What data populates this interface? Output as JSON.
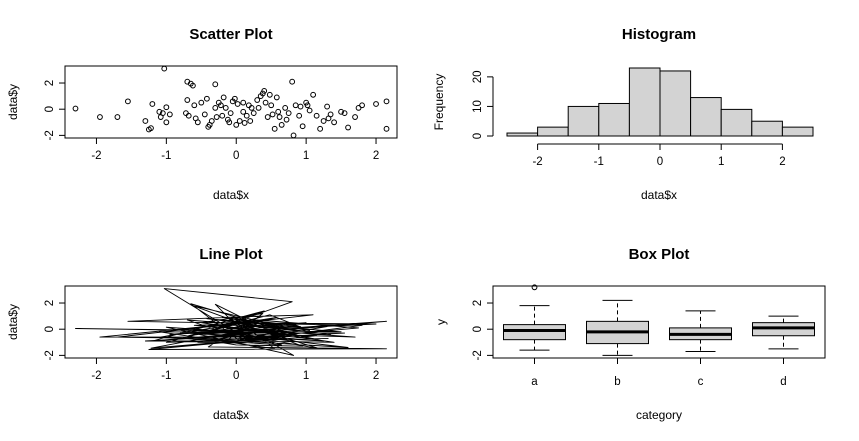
{
  "chart_data": [
    {
      "type": "scatter",
      "title": "Scatter Plot",
      "xlabel": "data$x",
      "ylabel": "data$y",
      "xlim": [
        -2.45,
        2.3
      ],
      "ylim": [
        -2.2,
        3.3
      ],
      "xticks": [
        -2,
        -1,
        0,
        1,
        2
      ],
      "yticks": [
        -2,
        0,
        2
      ],
      "ytick_labels": [
        "-2",
        "0",
        "2"
      ],
      "points": [
        [
          -2.3,
          0.05
        ],
        [
          -1.95,
          -0.6
        ],
        [
          -1.7,
          -0.6
        ],
        [
          -1.55,
          0.6
        ],
        [
          -1.3,
          -0.9
        ],
        [
          -1.25,
          -1.55
        ],
        [
          -1.22,
          -1.45
        ],
        [
          -1.2,
          0.4
        ],
        [
          -1.1,
          -0.2
        ],
        [
          -1.08,
          -0.6
        ],
        [
          -1.05,
          -0.3
        ],
        [
          -1.03,
          3.1
        ],
        [
          -1.0,
          0.15
        ],
        [
          -1.0,
          -1.0
        ],
        [
          -0.95,
          -0.4
        ],
        [
          -0.7,
          2.1
        ],
        [
          -0.65,
          1.95
        ],
        [
          -0.62,
          1.8
        ],
        [
          -0.7,
          0.7
        ],
        [
          -0.72,
          -0.3
        ],
        [
          -0.68,
          -0.5
        ],
        [
          -0.6,
          0.3
        ],
        [
          -0.58,
          -0.7
        ],
        [
          -0.55,
          -1.0
        ],
        [
          -0.5,
          0.5
        ],
        [
          -0.45,
          -0.4
        ],
        [
          -0.42,
          0.8
        ],
        [
          -0.4,
          -1.35
        ],
        [
          -0.38,
          -1.2
        ],
        [
          -0.35,
          -0.9
        ],
        [
          -0.3,
          1.9
        ],
        [
          -0.3,
          0.1
        ],
        [
          -0.28,
          -0.6
        ],
        [
          -0.25,
          0.5
        ],
        [
          -0.22,
          0.3
        ],
        [
          -0.2,
          -0.5
        ],
        [
          -0.18,
          0.9
        ],
        [
          -0.15,
          0.1
        ],
        [
          -0.12,
          -0.8
        ],
        [
          -0.1,
          -1.0
        ],
        [
          -0.08,
          -0.3
        ],
        [
          -0.05,
          0.6
        ],
        [
          -0.02,
          0.8
        ],
        [
          0.0,
          -1.2
        ],
        [
          0.02,
          0.4
        ],
        [
          0.05,
          -0.9
        ],
        [
          0.1,
          -0.2
        ],
        [
          0.1,
          0.5
        ],
        [
          0.12,
          -1.05
        ],
        [
          0.15,
          -0.5
        ],
        [
          0.18,
          0.3
        ],
        [
          0.2,
          -0.9
        ],
        [
          0.22,
          0.1
        ],
        [
          0.25,
          -0.3
        ],
        [
          0.3,
          0.7
        ],
        [
          0.32,
          0.1
        ],
        [
          0.35,
          1.0
        ],
        [
          0.38,
          1.2
        ],
        [
          0.4,
          1.4
        ],
        [
          0.42,
          0.5
        ],
        [
          0.45,
          -0.6
        ],
        [
          0.48,
          1.1
        ],
        [
          0.5,
          0.3
        ],
        [
          0.52,
          -0.4
        ],
        [
          0.55,
          -1.5
        ],
        [
          0.58,
          0.9
        ],
        [
          0.6,
          -0.2
        ],
        [
          0.62,
          -0.6
        ],
        [
          0.65,
          -1.2
        ],
        [
          0.7,
          0.1
        ],
        [
          0.72,
          -0.8
        ],
        [
          0.75,
          -0.3
        ],
        [
          0.8,
          2.1
        ],
        [
          0.82,
          -2.0
        ],
        [
          0.85,
          0.3
        ],
        [
          0.9,
          -0.5
        ],
        [
          0.92,
          0.2
        ],
        [
          0.95,
          -1.3
        ],
        [
          1.0,
          0.5
        ],
        [
          1.02,
          0.3
        ],
        [
          1.05,
          -0.1
        ],
        [
          1.1,
          1.1
        ],
        [
          1.15,
          -0.5
        ],
        [
          1.2,
          -1.5
        ],
        [
          1.25,
          -0.9
        ],
        [
          1.3,
          0.2
        ],
        [
          1.32,
          -0.7
        ],
        [
          1.35,
          -0.4
        ],
        [
          1.4,
          -1.0
        ],
        [
          1.5,
          -0.2
        ],
        [
          1.55,
          -0.3
        ],
        [
          1.6,
          -1.4
        ],
        [
          1.7,
          -0.6
        ],
        [
          1.75,
          0.1
        ],
        [
          1.8,
          0.3
        ],
        [
          2.0,
          0.4
        ],
        [
          2.15,
          0.6
        ],
        [
          2.15,
          -1.5
        ]
      ]
    },
    {
      "type": "bar",
      "title": "Histogram",
      "xlabel": "data$x",
      "ylabel": "Frequency",
      "xlim": [
        -2.5,
        2.5
      ],
      "ylim": [
        0,
        23
      ],
      "xticks": [
        -2,
        -1,
        0,
        1,
        2
      ],
      "yticks": [
        0,
        10,
        20
      ],
      "bin_edges": [
        -2.5,
        -2.0,
        -1.5,
        -1.0,
        -0.5,
        0.0,
        0.5,
        1.0,
        1.5,
        2.0,
        2.5
      ],
      "values": [
        1,
        3,
        10,
        11,
        23,
        22,
        13,
        9,
        5,
        3
      ]
    },
    {
      "type": "line",
      "title": "Line Plot",
      "xlabel": "data$x",
      "ylabel": "data$y",
      "xlim": [
        -2.45,
        2.3
      ],
      "ylim": [
        -2.2,
        3.3
      ],
      "xticks": [
        -2,
        -1,
        0,
        1,
        2
      ],
      "yticks": [
        -2,
        0,
        2
      ],
      "ytick_labels": [
        "-2",
        "0",
        "2"
      ],
      "sequence": [
        [
          -0.3,
          0.1
        ],
        [
          0.4,
          1.4
        ],
        [
          -1.2,
          -0.9
        ],
        [
          2.15,
          0.6
        ],
        [
          -0.5,
          -0.4
        ],
        [
          0.8,
          2.1
        ],
        [
          -1.03,
          3.1
        ],
        [
          0.2,
          -0.9
        ],
        [
          -0.7,
          0.7
        ],
        [
          1.5,
          -0.2
        ],
        [
          -2.3,
          0.05
        ],
        [
          0.6,
          -0.2
        ],
        [
          -0.1,
          -1.0
        ],
        [
          1.8,
          0.3
        ],
        [
          -1.55,
          0.6
        ],
        [
          0.35,
          1.0
        ],
        [
          -0.4,
          -1.35
        ],
        [
          2.15,
          -1.5
        ],
        [
          -1.25,
          -1.55
        ],
        [
          0.9,
          -0.5
        ],
        [
          -0.65,
          1.95
        ],
        [
          0.05,
          -0.9
        ],
        [
          1.3,
          0.2
        ],
        [
          -0.95,
          -0.4
        ],
        [
          0.5,
          0.3
        ],
        [
          -0.2,
          0.9
        ],
        [
          1.1,
          1.1
        ],
        [
          -1.7,
          -0.6
        ],
        [
          0.72,
          -0.8
        ],
        [
          -0.3,
          1.9
        ],
        [
          0.15,
          -0.5
        ],
        [
          1.6,
          -1.4
        ],
        [
          -0.58,
          -0.7
        ],
        [
          0.25,
          -0.3
        ],
        [
          -1.0,
          0.15
        ],
        [
          0.82,
          -2.0
        ],
        [
          -0.05,
          0.6
        ],
        [
          1.25,
          -0.9
        ],
        [
          -0.72,
          -0.3
        ],
        [
          0.45,
          -0.6
        ],
        [
          -1.95,
          -0.6
        ],
        [
          0.1,
          0.5
        ],
        [
          0.58,
          0.9
        ],
        [
          -0.45,
          -0.4
        ],
        [
          1.0,
          0.5
        ],
        [
          -0.15,
          0.1
        ],
        [
          0.65,
          -1.2
        ],
        [
          -1.08,
          -0.6
        ],
        [
          0.3,
          0.7
        ],
        [
          1.75,
          0.1
        ],
        [
          -0.35,
          -0.9
        ],
        [
          0.0,
          -1.2
        ],
        [
          0.95,
          -1.3
        ],
        [
          -0.62,
          1.8
        ],
        [
          0.42,
          0.5
        ],
        [
          -0.25,
          0.5
        ],
        [
          2.0,
          0.4
        ],
        [
          -0.8,
          -0.3
        ],
        [
          0.75,
          -0.3
        ],
        [
          -1.3,
          -0.9
        ],
        [
          0.2,
          -0.9
        ],
        [
          1.4,
          -1.0
        ],
        [
          -0.5,
          0.5
        ],
        [
          0.38,
          1.2
        ],
        [
          -0.12,
          -0.8
        ],
        [
          1.55,
          -0.3
        ],
        [
          -1.1,
          -0.2
        ],
        [
          0.55,
          -1.5
        ],
        [
          -0.02,
          0.8
        ],
        [
          0.85,
          0.3
        ],
        [
          -0.28,
          -0.6
        ],
        [
          1.15,
          -0.5
        ],
        [
          0.12,
          -1.05
        ],
        [
          -0.55,
          -1.0
        ],
        [
          0.7,
          0.1
        ],
        [
          -0.18,
          0.9
        ],
        [
          1.05,
          -0.1
        ],
        [
          0.48,
          1.1
        ],
        [
          -0.68,
          -0.5
        ],
        [
          0.22,
          0.1
        ],
        [
          1.2,
          -1.5
        ],
        [
          -0.08,
          -0.3
        ],
        [
          0.62,
          -0.6
        ],
        [
          -1.22,
          -1.45
        ],
        [
          0.32,
          0.1
        ],
        [
          0.92,
          0.2
        ],
        [
          -0.42,
          0.8
        ],
        [
          1.35,
          -0.4
        ],
        [
          0.18,
          0.3
        ],
        [
          -0.22,
          0.3
        ],
        [
          0.52,
          -0.4
        ],
        [
          1.7,
          -0.6
        ],
        [
          -0.6,
          0.3
        ],
        [
          0.02,
          0.4
        ],
        [
          -1.0,
          -1.0
        ],
        [
          1.32,
          -0.7
        ]
      ]
    },
    {
      "type": "box",
      "title": "Box Plot",
      "xlabel": "category",
      "ylabel": "y",
      "ylim": [
        -2.2,
        3.3
      ],
      "yticks": [
        -2,
        0,
        2
      ],
      "ytick_labels": [
        "-2",
        "0",
        "2"
      ],
      "categories": [
        "a",
        "b",
        "c",
        "d"
      ],
      "boxes": [
        {
          "min": -1.6,
          "q1": -0.8,
          "median": -0.1,
          "q3": 0.35,
          "max": 1.8,
          "outliers": [
            3.2
          ]
        },
        {
          "min": -2.0,
          "q1": -1.1,
          "median": -0.2,
          "q3": 0.6,
          "max": 2.2,
          "outliers": []
        },
        {
          "min": -1.7,
          "q1": -0.8,
          "median": -0.4,
          "q3": 0.1,
          "max": 1.4,
          "outliers": []
        },
        {
          "min": -1.5,
          "q1": -0.5,
          "median": 0.1,
          "q3": 0.5,
          "max": 1.0,
          "outliers": []
        }
      ]
    }
  ]
}
